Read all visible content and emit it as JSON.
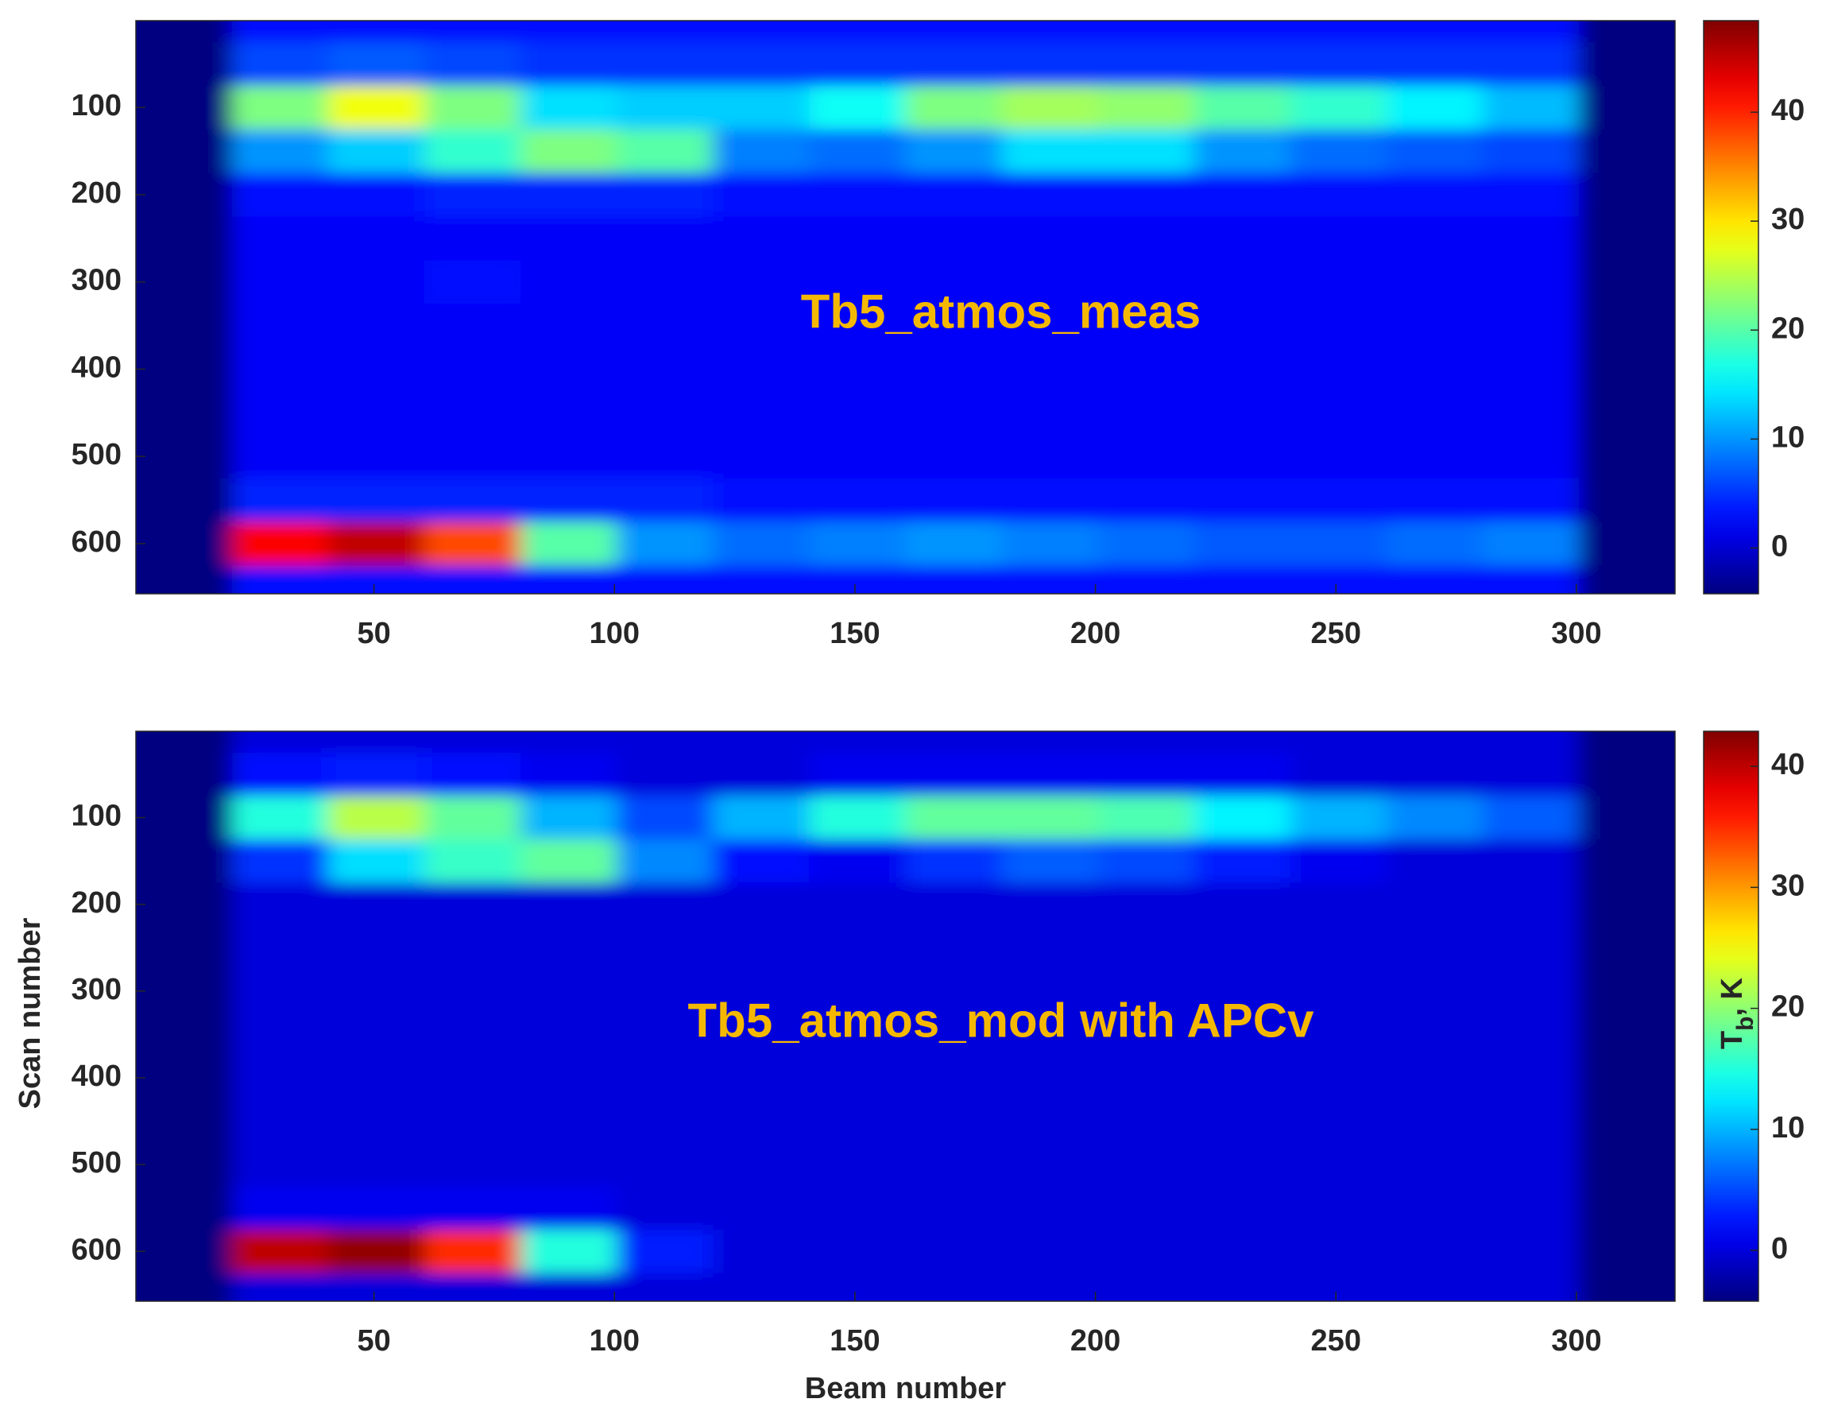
{
  "chart_data": [
    {
      "type": "heatmap",
      "colormap": "jet",
      "annotation": "Tb5_atmos_meas",
      "x": [
        10.5,
        30.5,
        50.5,
        70.5,
        90.5,
        110.5,
        130.5,
        150.5,
        170.5,
        190.5,
        210.5,
        230.5,
        250.5,
        270.5,
        290.5,
        310.5
      ],
      "y": [
        0,
        50,
        100,
        150,
        200,
        250,
        300,
        350,
        400,
        450,
        500,
        550,
        600,
        650
      ],
      "z": [
        [
          -4.2,
          3,
          3,
          3,
          3,
          3,
          3,
          3,
          3,
          3,
          3,
          3,
          3,
          3,
          3,
          -4.2
        ],
        [
          -4.2,
          6,
          7,
          6,
          5,
          5,
          5,
          5,
          5,
          5,
          5,
          5,
          5,
          5,
          5,
          -4.2
        ],
        [
          -4.2,
          22,
          28,
          22,
          14,
          13,
          13,
          16,
          22,
          24,
          23,
          20,
          18,
          15,
          12,
          -4.2
        ],
        [
          -4.2,
          10,
          13,
          18,
          22,
          20,
          9,
          8,
          10,
          14,
          14,
          10,
          8,
          7,
          6,
          -4.2
        ],
        [
          -4.2,
          3,
          3,
          4,
          4,
          4,
          3,
          3,
          3,
          3,
          3,
          3,
          3,
          3,
          3,
          -4.2
        ],
        [
          -4.2,
          2,
          2,
          2,
          2,
          2,
          2,
          2,
          2,
          2,
          2,
          2,
          2,
          2,
          2,
          -4.2
        ],
        [
          -4.2,
          2,
          2,
          3,
          2,
          2,
          2,
          2,
          2,
          2,
          2,
          2,
          2,
          2,
          2,
          -4.2
        ],
        [
          -4.2,
          2,
          2,
          2,
          2,
          2,
          2,
          2,
          2,
          2,
          2,
          2,
          2,
          2,
          2,
          -4.2
        ],
        [
          -4.2,
          2,
          2,
          2,
          2,
          2,
          2,
          2,
          2,
          2,
          2,
          2,
          2,
          2,
          2,
          -4.2
        ],
        [
          -4.2,
          2,
          2,
          2,
          2,
          2,
          2,
          2,
          2,
          2,
          2,
          2,
          2,
          2,
          2,
          -4.2
        ],
        [
          -4.2,
          2,
          2,
          2,
          2,
          2,
          2,
          2,
          2,
          2,
          2,
          2,
          2,
          2,
          2,
          -4.2
        ],
        [
          -4.2,
          4,
          4,
          4,
          4,
          4,
          3,
          3,
          3,
          3,
          3,
          3,
          3,
          3,
          3,
          -4.2
        ],
        [
          -4.2,
          42,
          45,
          38,
          20,
          10,
          8,
          9,
          10,
          9,
          8,
          7,
          7,
          8,
          9,
          -4.2
        ],
        [
          -4.2,
          3,
          3,
          3,
          3,
          3,
          3,
          3,
          3,
          3,
          3,
          3,
          3,
          3,
          3,
          -4.2
        ]
      ],
      "xlim": [
        0.5,
        320.5
      ],
      "ylim": [
        0.5,
        657.5
      ],
      "y_reversed": true,
      "xticks": [
        50,
        100,
        150,
        200,
        250,
        300
      ],
      "yticks": [
        100,
        200,
        300,
        400,
        500,
        600
      ],
      "clim": [
        -4.2,
        48.4
      ],
      "cticks": [
        0,
        10,
        20,
        30,
        40
      ]
    },
    {
      "type": "heatmap",
      "colormap": "jet",
      "annotation": "Tb5_atmos_mod with APCv",
      "xlabel": "Beam number",
      "ylabel": "Scan number",
      "colorbar_label": [
        "T",
        "b",
        ", K"
      ],
      "x": [
        10.5,
        30.5,
        50.5,
        70.5,
        90.5,
        110.5,
        130.5,
        150.5,
        170.5,
        190.5,
        210.5,
        230.5,
        250.5,
        270.5,
        290.5,
        310.5
      ],
      "y": [
        0,
        50,
        100,
        150,
        200,
        250,
        300,
        350,
        400,
        450,
        500,
        550,
        600,
        650
      ],
      "z": [
        [
          -4.2,
          0,
          0,
          0,
          0,
          0,
          0,
          0,
          0,
          0,
          0,
          0,
          0,
          0,
          0,
          -4.2
        ],
        [
          -4.2,
          2,
          3,
          2,
          1,
          0,
          0,
          1,
          1,
          1,
          1,
          1,
          0,
          0,
          0,
          -4.2
        ],
        [
          -4.2,
          15,
          22,
          18,
          10,
          5,
          10,
          15,
          18,
          18,
          17,
          13,
          10,
          8,
          6,
          -4.2
        ],
        [
          -4.2,
          4,
          12,
          16,
          18,
          8,
          2,
          1,
          4,
          6,
          5,
          3,
          1,
          0,
          0,
          -4.2
        ],
        [
          -4.2,
          0,
          0,
          0,
          0,
          0,
          0,
          0,
          0,
          0,
          0,
          0,
          0,
          0,
          0,
          -4.2
        ],
        [
          -4.2,
          0,
          0,
          0,
          0,
          0,
          0,
          0,
          0,
          0,
          0,
          0,
          0,
          0,
          0,
          -4.2
        ],
        [
          -4.2,
          0,
          0,
          0,
          0,
          0,
          0,
          0,
          0,
          0,
          0,
          0,
          0,
          0,
          0,
          -4.2
        ],
        [
          -4.2,
          0,
          0,
          0,
          0,
          0,
          0,
          0,
          0,
          0,
          0,
          0,
          0,
          0,
          0,
          -4.2
        ],
        [
          -4.2,
          0,
          0,
          0,
          0,
          0,
          0,
          0,
          0,
          0,
          0,
          0,
          0,
          0,
          0,
          -4.2
        ],
        [
          -4.2,
          0,
          0,
          0,
          0,
          0,
          0,
          0,
          0,
          0,
          0,
          0,
          0,
          0,
          0,
          -4.2
        ],
        [
          -4.2,
          0,
          0,
          0,
          0,
          0,
          0,
          0,
          0,
          0,
          0,
          0,
          0,
          0,
          0,
          -4.2
        ],
        [
          -4.2,
          1,
          1,
          1,
          1,
          0,
          0,
          0,
          0,
          0,
          0,
          0,
          0,
          0,
          0,
          -4.2
        ],
        [
          -4.2,
          40,
          42,
          35,
          15,
          3,
          0,
          0,
          0,
          0,
          0,
          0,
          0,
          0,
          0,
          -4.2
        ],
        [
          -4.2,
          0,
          0,
          0,
          0,
          0,
          0,
          0,
          0,
          0,
          0,
          0,
          0,
          0,
          0,
          -4.2
        ]
      ],
      "xlim": [
        0.5,
        320.5
      ],
      "ylim": [
        0.5,
        657.5
      ],
      "y_reversed": true,
      "xticks": [
        50,
        100,
        150,
        200,
        250,
        300
      ],
      "yticks": [
        100,
        200,
        300,
        400,
        500,
        600
      ],
      "clim": [
        -4.2,
        42.9
      ],
      "cticks": [
        0,
        10,
        20,
        30,
        40
      ]
    }
  ]
}
